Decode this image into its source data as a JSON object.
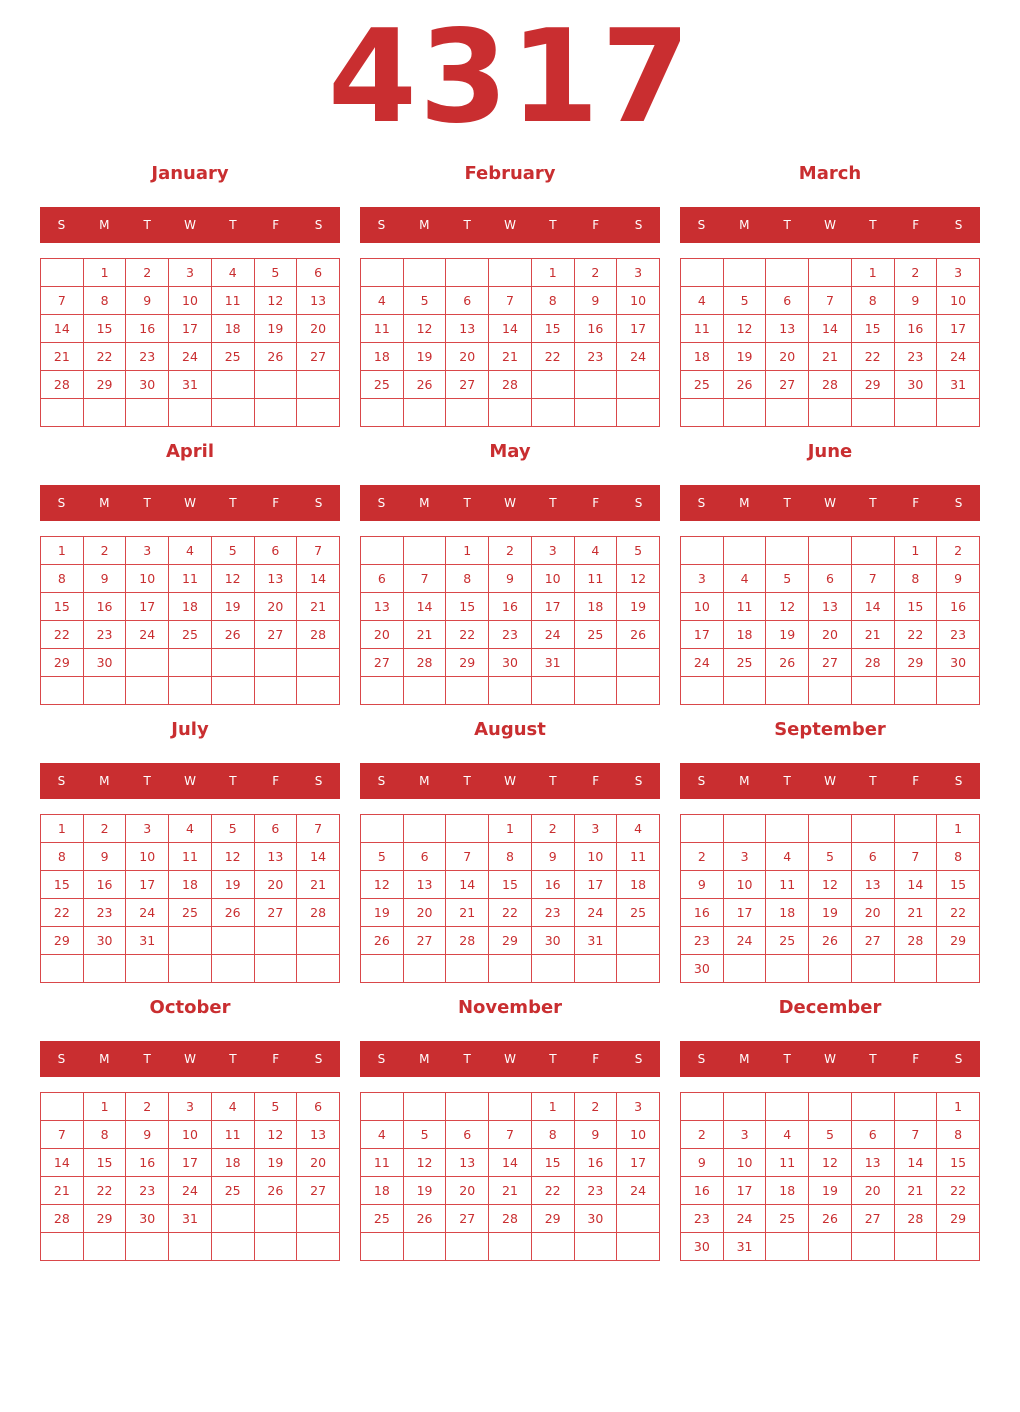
{
  "year": "4317",
  "accent": "#c92e30",
  "weekdays": [
    "S",
    "M",
    "T",
    "W",
    "T",
    "F",
    "S"
  ],
  "months": [
    {
      "name": "January",
      "cells": [
        null,
        1,
        2,
        3,
        4,
        5,
        6,
        7,
        8,
        9,
        10,
        11,
        12,
        13,
        14,
        15,
        16,
        17,
        18,
        19,
        20,
        21,
        22,
        23,
        24,
        25,
        26,
        27,
        28,
        29,
        30,
        31,
        null,
        null,
        null,
        null,
        null,
        null,
        null,
        null,
        null,
        null
      ]
    },
    {
      "name": "February",
      "cells": [
        null,
        null,
        null,
        null,
        1,
        2,
        3,
        4,
        5,
        6,
        7,
        8,
        9,
        10,
        11,
        12,
        13,
        14,
        15,
        16,
        17,
        18,
        19,
        20,
        21,
        22,
        23,
        24,
        25,
        26,
        27,
        28,
        null,
        null,
        null,
        null,
        null,
        null,
        null,
        null,
        null,
        null
      ]
    },
    {
      "name": "March",
      "cells": [
        null,
        null,
        null,
        null,
        1,
        2,
        3,
        4,
        5,
        6,
        7,
        8,
        9,
        10,
        11,
        12,
        13,
        14,
        15,
        16,
        17,
        18,
        19,
        20,
        21,
        22,
        23,
        24,
        25,
        26,
        27,
        28,
        29,
        30,
        31,
        null,
        null,
        null,
        null,
        null,
        null,
        null
      ]
    },
    {
      "name": "April",
      "cells": [
        1,
        2,
        3,
        4,
        5,
        6,
        7,
        8,
        9,
        10,
        11,
        12,
        13,
        14,
        15,
        16,
        17,
        18,
        19,
        20,
        21,
        22,
        23,
        24,
        25,
        26,
        27,
        28,
        29,
        30,
        null,
        null,
        null,
        null,
        null,
        null,
        null,
        null,
        null,
        null,
        null,
        null
      ]
    },
    {
      "name": "May",
      "cells": [
        null,
        null,
        1,
        2,
        3,
        4,
        5,
        6,
        7,
        8,
        9,
        10,
        11,
        12,
        13,
        14,
        15,
        16,
        17,
        18,
        19,
        20,
        21,
        22,
        23,
        24,
        25,
        26,
        27,
        28,
        29,
        30,
        31,
        null,
        null,
        null,
        null,
        null,
        null,
        null,
        null,
        null
      ]
    },
    {
      "name": "June",
      "cells": [
        null,
        null,
        null,
        null,
        null,
        1,
        2,
        3,
        4,
        5,
        6,
        7,
        8,
        9,
        10,
        11,
        12,
        13,
        14,
        15,
        16,
        17,
        18,
        19,
        20,
        21,
        22,
        23,
        24,
        25,
        26,
        27,
        28,
        29,
        30,
        null,
        null,
        null,
        null,
        null,
        null,
        null
      ]
    },
    {
      "name": "July",
      "cells": [
        1,
        2,
        3,
        4,
        5,
        6,
        7,
        8,
        9,
        10,
        11,
        12,
        13,
        14,
        15,
        16,
        17,
        18,
        19,
        20,
        21,
        22,
        23,
        24,
        25,
        26,
        27,
        28,
        29,
        30,
        31,
        null,
        null,
        null,
        null,
        null,
        null,
        null,
        null,
        null,
        null,
        null
      ]
    },
    {
      "name": "August",
      "cells": [
        null,
        null,
        null,
        1,
        2,
        3,
        4,
        5,
        6,
        7,
        8,
        9,
        10,
        11,
        12,
        13,
        14,
        15,
        16,
        17,
        18,
        19,
        20,
        21,
        22,
        23,
        24,
        25,
        26,
        27,
        28,
        29,
        30,
        31,
        null,
        null,
        null,
        null,
        null,
        null,
        null,
        null
      ]
    },
    {
      "name": "September",
      "cells": [
        null,
        null,
        null,
        null,
        null,
        null,
        1,
        2,
        3,
        4,
        5,
        6,
        7,
        8,
        9,
        10,
        11,
        12,
        13,
        14,
        15,
        16,
        17,
        18,
        19,
        20,
        21,
        22,
        23,
        24,
        25,
        26,
        27,
        28,
        29,
        30,
        null,
        null,
        null,
        null,
        null,
        null
      ]
    },
    {
      "name": "October",
      "cells": [
        null,
        1,
        2,
        3,
        4,
        5,
        6,
        7,
        8,
        9,
        10,
        11,
        12,
        13,
        14,
        15,
        16,
        17,
        18,
        19,
        20,
        21,
        22,
        23,
        24,
        25,
        26,
        27,
        28,
        29,
        30,
        31,
        null,
        null,
        null,
        null,
        null,
        null,
        null,
        null,
        null,
        null
      ]
    },
    {
      "name": "November",
      "cells": [
        null,
        null,
        null,
        null,
        1,
        2,
        3,
        4,
        5,
        6,
        7,
        8,
        9,
        10,
        11,
        12,
        13,
        14,
        15,
        16,
        17,
        18,
        19,
        20,
        21,
        22,
        23,
        24,
        25,
        26,
        27,
        28,
        29,
        30,
        null,
        null,
        null,
        null,
        null,
        null,
        null,
        null
      ]
    },
    {
      "name": "December",
      "cells": [
        null,
        null,
        null,
        null,
        null,
        null,
        1,
        2,
        3,
        4,
        5,
        6,
        7,
        8,
        9,
        10,
        11,
        12,
        13,
        14,
        15,
        16,
        17,
        18,
        19,
        20,
        21,
        22,
        23,
        24,
        25,
        26,
        27,
        28,
        29,
        30,
        31,
        null,
        null,
        null,
        null,
        null
      ]
    }
  ]
}
